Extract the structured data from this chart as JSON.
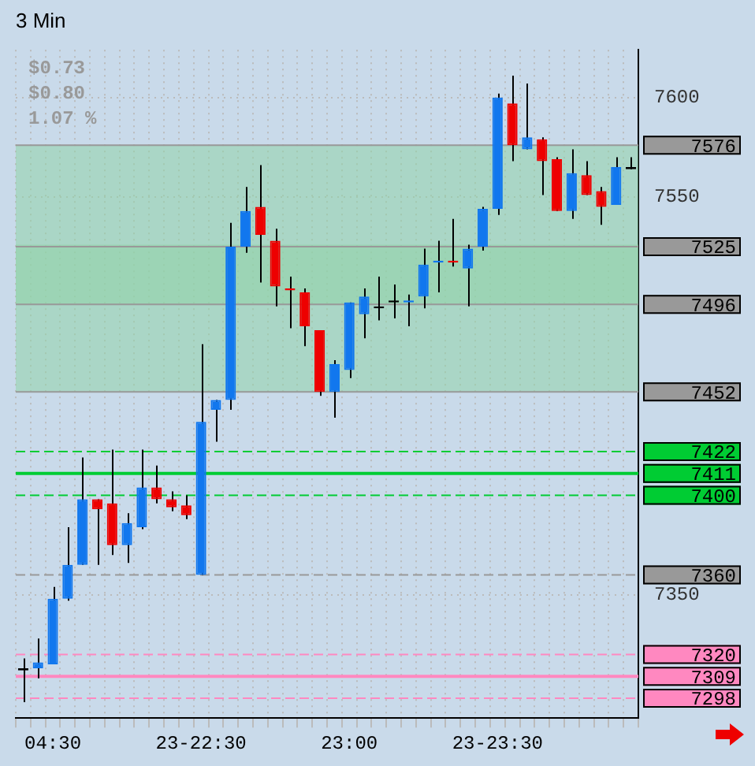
{
  "chart_data": {
    "type": "candlestick",
    "title": "3 Min",
    "categories": [
      null,
      null,
      "04:30",
      null,
      null,
      null,
      null,
      null,
      null,
      null,
      null,
      null,
      "23-22:30",
      null,
      null,
      null,
      null,
      null,
      null,
      null,
      null,
      null,
      "23:00",
      null,
      null,
      null,
      null,
      null,
      null,
      null,
      null,
      null,
      "23-23:30",
      null,
      null,
      null,
      null,
      null,
      null,
      null,
      null,
      null
    ],
    "ohlc": [
      [
        7313,
        7318,
        7296,
        7312
      ],
      [
        7313,
        7328,
        7308,
        7316
      ],
      [
        7315,
        7354,
        7315,
        7348
      ],
      [
        7348,
        7384,
        7347,
        7365
      ],
      [
        7365,
        7419,
        7365,
        7398
      ],
      [
        7398,
        7398,
        7365,
        7393
      ],
      [
        7396,
        7423,
        7370,
        7375
      ],
      [
        7375,
        7391,
        7366,
        7386
      ],
      [
        7384,
        7423,
        7383,
        7404
      ],
      [
        7404,
        7415,
        7396,
        7398
      ],
      [
        7398,
        7402,
        7392,
        7394
      ],
      [
        7395,
        7400,
        7388,
        7390
      ],
      [
        7360,
        7476,
        7360,
        7437
      ],
      [
        7443,
        7448,
        7427,
        7448
      ],
      [
        7448,
        7537,
        7443,
        7525
      ],
      [
        7525,
        7555,
        7522,
        7543
      ],
      [
        7545,
        7566,
        7507,
        7531
      ],
      [
        7528,
        7534,
        7495,
        7505
      ],
      [
        7504,
        7510,
        7484,
        7503
      ],
      [
        7502,
        7504,
        7475,
        7485
      ],
      [
        7483,
        7483,
        7450,
        7452
      ],
      [
        7452,
        7468,
        7439,
        7466
      ],
      [
        7463,
        7497,
        7459,
        7497
      ],
      [
        7491,
        7504,
        7479,
        7500
      ],
      [
        7495,
        7510,
        7488,
        7494
      ],
      [
        7498,
        7506,
        7489,
        7497
      ],
      [
        7497,
        7501,
        7485,
        7498
      ],
      [
        7500,
        7524,
        7494,
        7516
      ],
      [
        7517,
        7528,
        7502,
        7518
      ],
      [
        7518,
        7539,
        7515,
        7517
      ],
      [
        7514,
        7526,
        7495,
        7524
      ],
      [
        7525,
        7545,
        7523,
        7544
      ],
      [
        7544,
        7602,
        7541,
        7600
      ],
      [
        7597,
        7611,
        7568,
        7576
      ],
      [
        7574,
        7607,
        7574,
        7580
      ],
      [
        7579,
        7580,
        7551,
        7568
      ],
      [
        7569,
        7570,
        7543,
        7543
      ],
      [
        7543,
        7574,
        7539,
        7562
      ],
      [
        7561,
        7568,
        7551,
        7551
      ],
      [
        7553,
        7555,
        7536,
        7545
      ],
      [
        7546,
        7570,
        7546,
        7565
      ],
      [
        7565,
        7570,
        7564,
        7564
      ]
    ],
    "colors": [
      "#000000",
      "#1177ee",
      "#1177ee",
      "#1177ee",
      "#1177ee",
      "#ee0000",
      "#ee0000",
      "#1177ee",
      "#1177ee",
      "#ee0000",
      "#ee0000",
      "#ee0000",
      "#1177ee",
      "#1177ee",
      "#1177ee",
      "#1177ee",
      "#ee0000",
      "#ee0000",
      "#ee0000",
      "#ee0000",
      "#ee0000",
      "#1177ee",
      "#1177ee",
      "#1177ee",
      "#000000",
      "#000000",
      "#1177ee",
      "#1177ee",
      "#1177ee",
      "#ee0000",
      "#1177ee",
      "#1177ee",
      "#1177ee",
      "#ee0000",
      "#1177ee",
      "#ee0000",
      "#ee0000",
      "#1177ee",
      "#ee0000",
      "#ee0000",
      "#1177ee",
      "#000000"
    ],
    "ylim": [
      7288,
      7624
    ],
    "yticks": [
      7350,
      7550,
      7600
    ],
    "grid": true,
    "legend": false,
    "bands": [
      {
        "axis": "y",
        "from": 7452,
        "to": 7526,
        "color": "#8fd4a8"
      },
      {
        "axis": "y",
        "from": 7496,
        "to": 7576,
        "color": "#8fd4a8"
      }
    ],
    "ref_lines": [
      {
        "axis": "y",
        "value": 7576,
        "label": "7576",
        "color": "#999999",
        "line_style": "solid"
      },
      {
        "axis": "y",
        "value": 7525,
        "label": "7525",
        "color": "#999999",
        "line_style": "solid"
      },
      {
        "axis": "y",
        "value": 7496,
        "label": "7496",
        "color": "#999999",
        "line_style": "solid"
      },
      {
        "axis": "y",
        "value": 7452,
        "label": "7452",
        "color": "#999999",
        "line_style": "solid"
      },
      {
        "axis": "y",
        "value": 7422,
        "label": "7422",
        "color": "#00cc33",
        "line_style": "dashed"
      },
      {
        "axis": "y",
        "value": 7411,
        "label": "7411",
        "color": "#00cc33",
        "line_style": "solid"
      },
      {
        "axis": "y",
        "value": 7400,
        "label": "7400",
        "color": "#00cc33",
        "line_style": "dashed"
      },
      {
        "axis": "y",
        "value": 7360,
        "label": "7360",
        "color": "#999999",
        "line_style": "dashed"
      },
      {
        "axis": "y",
        "value": 7320,
        "label": "7320",
        "color": "#ff88c0",
        "line_style": "dashed"
      },
      {
        "axis": "y",
        "value": 7309,
        "label": "7309",
        "color": "#ff88c0",
        "line_style": "solid"
      },
      {
        "axis": "y",
        "value": 7298,
        "label": "7298",
        "color": "#ff88c0",
        "line_style": "dashed"
      }
    ],
    "annotations": [
      "$0.73",
      "$0.80",
      "1.07 %"
    ]
  }
}
